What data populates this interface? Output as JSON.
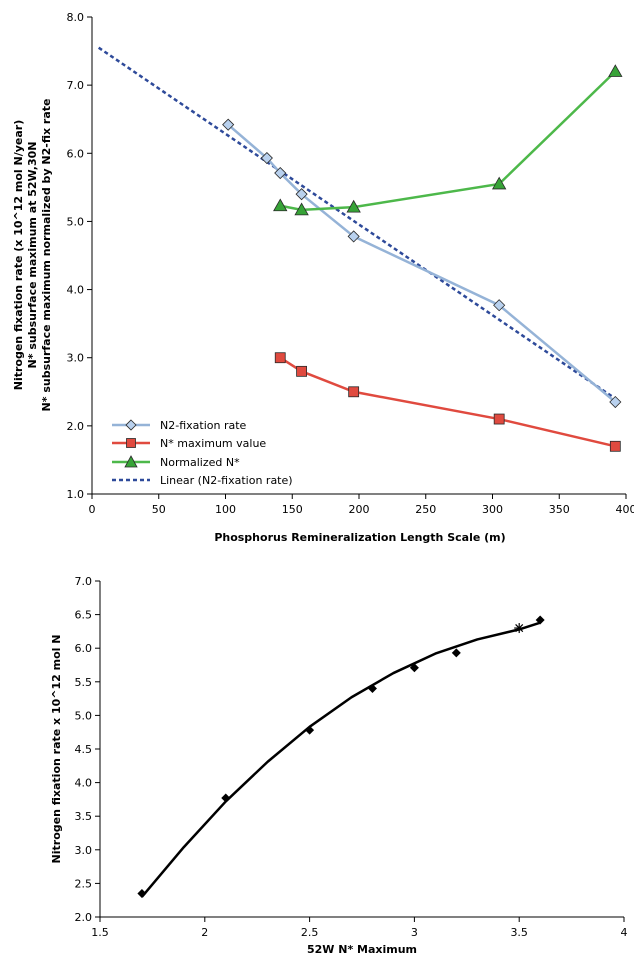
{
  "chart_data": [
    {
      "type": "line",
      "title": "",
      "xlabel": "Phosphorus Remineralization Length Scale (m)",
      "ylabel_lines": [
        "Nitrogen fixation rate (x 10^12 mol N/year)",
        "N* subsurface maximum at 52W,30N",
        "N* subsurface maximum normalized by N2-fix rate"
      ],
      "xlim": [
        0,
        400
      ],
      "ylim": [
        1.0,
        8.0
      ],
      "x_ticks": [
        0,
        50,
        100,
        150,
        200,
        250,
        300,
        350,
        400
      ],
      "y_ticks": [
        1.0,
        2.0,
        3.0,
        4.0,
        5.0,
        6.0,
        7.0,
        8.0
      ],
      "x_tick_labels": [
        "0",
        "50",
        "100",
        "150",
        "200",
        "250",
        "300",
        "350",
        "400"
      ],
      "y_tick_labels": [
        "1.0",
        "2.0",
        "3.0",
        "4.0",
        "5.0",
        "6.0",
        "7.0",
        "8.0"
      ],
      "grid": false,
      "legend_position": "bottom-left",
      "series": [
        {
          "name": "N2-fixation rate",
          "marker": "diamond",
          "color": "#95b3d7",
          "marker_fill": "#b9d1ee",
          "x": [
            102,
            131,
            141,
            157,
            196,
            305,
            392
          ],
          "y": [
            6.42,
            5.93,
            5.71,
            5.4,
            4.78,
            3.77,
            2.35
          ]
        },
        {
          "name": "N* maximum value",
          "marker": "square",
          "color": "#e04a3f",
          "marker_fill": "#e04a3f",
          "x": [
            141,
            157,
            196,
            305,
            392
          ],
          "y": [
            3.0,
            2.8,
            2.5,
            2.1,
            1.7
          ]
        },
        {
          "name": "Normalized N*",
          "marker": "triangle",
          "color": "#4db84a",
          "marker_fill": "#37a337",
          "x": [
            141,
            157,
            196,
            305,
            392
          ],
          "y": [
            5.23,
            5.17,
            5.21,
            5.55,
            7.2
          ]
        },
        {
          "name": "Linear (N2-fixation rate)",
          "style": "dashed",
          "color": "#2e4a9a",
          "x": [
            5,
            392
          ],
          "y": [
            7.55,
            2.4
          ]
        }
      ]
    },
    {
      "type": "scatter",
      "title": "",
      "xlabel": "52W N* Maximum",
      "ylabel": "Nitrogen fixation rate x 10^12 mol N",
      "xlim": [
        1.5,
        4.0
      ],
      "ylim": [
        2.0,
        7.0
      ],
      "x_ticks": [
        1.5,
        2.0,
        2.5,
        3.0,
        3.5,
        4.0
      ],
      "y_ticks": [
        2.0,
        2.5,
        3.0,
        3.5,
        4.0,
        4.5,
        5.0,
        5.5,
        6.0,
        6.5,
        7.0
      ],
      "x_tick_labels": [
        "1.5",
        "2",
        "2.5",
        "3",
        "3.5",
        "4"
      ],
      "y_tick_labels": [
        "2.0",
        "2.5",
        "3.0",
        "3.5",
        "4.0",
        "4.5",
        "5.0",
        "5.5",
        "6.0",
        "6.5",
        "7.0"
      ],
      "grid": false,
      "points": {
        "marker": "diamond",
        "color": "#000000",
        "x": [
          1.7,
          2.1,
          2.5,
          2.8,
          3.0,
          3.2,
          3.6
        ],
        "y": [
          2.35,
          3.77,
          4.78,
          5.4,
          5.71,
          5.93,
          6.42
        ]
      },
      "extra_point": {
        "marker": "star",
        "color": "#000000",
        "x": 3.5,
        "y": 6.3
      },
      "trend_curve": {
        "x": [
          1.7,
          1.9,
          2.1,
          2.3,
          2.5,
          2.7,
          2.9,
          3.1,
          3.3,
          3.5,
          3.6
        ],
        "y": [
          2.3,
          3.04,
          3.72,
          4.31,
          4.83,
          5.27,
          5.63,
          5.92,
          6.13,
          6.28,
          6.38
        ]
      }
    }
  ]
}
